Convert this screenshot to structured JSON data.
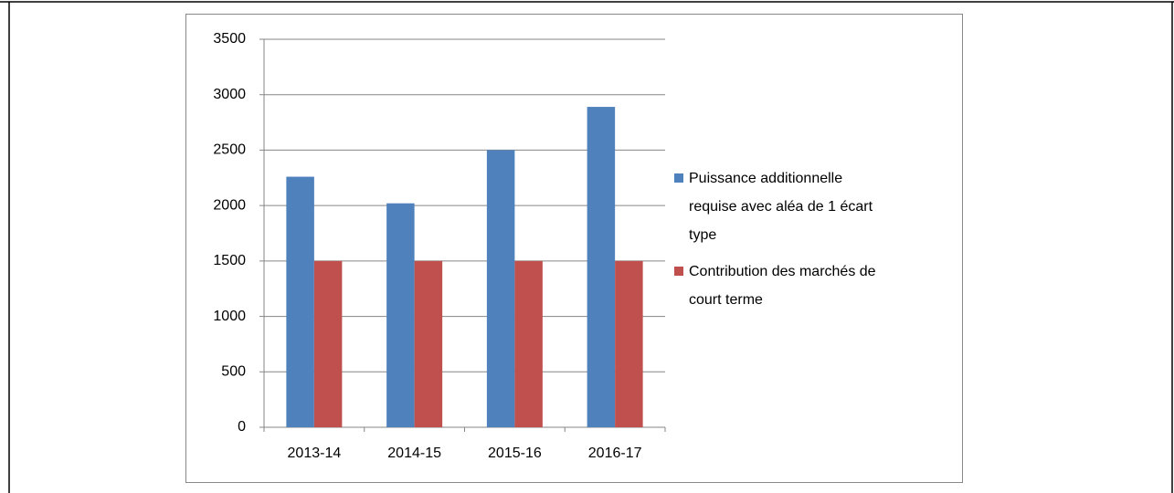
{
  "chart_data": {
    "type": "bar",
    "categories": [
      "2013-14",
      "2014-15",
      "2015-16",
      "2016-17"
    ],
    "series": [
      {
        "name": "Puissance additionnelle requise avec aléa de 1 écart type",
        "color": "#4f81bd",
        "values": [
          2260,
          2020,
          2500,
          2890
        ]
      },
      {
        "name": "Contribution des marchés de court terme",
        "color": "#c0504d",
        "values": [
          1500,
          1500,
          1500,
          1500
        ]
      }
    ],
    "ylim": [
      0,
      3500
    ],
    "yticks": [
      0,
      500,
      1000,
      1500,
      2000,
      2500,
      3000,
      3500
    ],
    "grid": true,
    "legend": "right"
  }
}
